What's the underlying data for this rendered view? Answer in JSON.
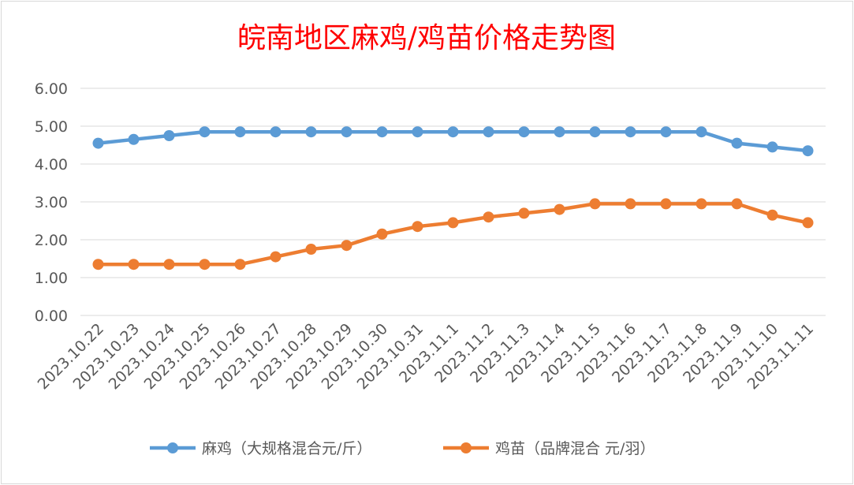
{
  "chart_data": {
    "type": "line",
    "title": "皖南地区麻鸡/鸡苗价格走势图",
    "xlabel": "",
    "ylabel": "",
    "ylim": [
      0,
      6
    ],
    "yticks": [
      "0.00",
      "1.00",
      "2.00",
      "3.00",
      "4.00",
      "5.00",
      "6.00"
    ],
    "grid": true,
    "legend_position": "bottom",
    "categories": [
      "2023.10.22",
      "2023.10.23",
      "2023.10.24",
      "2023.10.25",
      "2023.10.26",
      "2023.10.27",
      "2023.10.28",
      "2023.10.29",
      "2023.10.30",
      "2023.10.31",
      "2023.11.1",
      "2023.11.2",
      "2023.11.3",
      "2023.11.4",
      "2023.11.5",
      "2023.11.6",
      "2023.11.7",
      "2023.11.8",
      "2023.11.9",
      "2023.11.10",
      "2023.11.11"
    ],
    "series": [
      {
        "name": "麻鸡（大规格混合元/斤）",
        "color": "#5b9bd5",
        "values": [
          4.55,
          4.65,
          4.75,
          4.85,
          4.85,
          4.85,
          4.85,
          4.85,
          4.85,
          4.85,
          4.85,
          4.85,
          4.85,
          4.85,
          4.85,
          4.85,
          4.85,
          4.85,
          4.55,
          4.45,
          4.35
        ]
      },
      {
        "name": "鸡苗（品牌混合 元/羽）",
        "color": "#ed7d31",
        "values": [
          1.35,
          1.35,
          1.35,
          1.35,
          1.35,
          1.55,
          1.75,
          1.85,
          2.15,
          2.35,
          2.45,
          2.6,
          2.7,
          2.8,
          2.95,
          2.95,
          2.95,
          2.95,
          2.95,
          2.65,
          2.45
        ]
      }
    ]
  }
}
